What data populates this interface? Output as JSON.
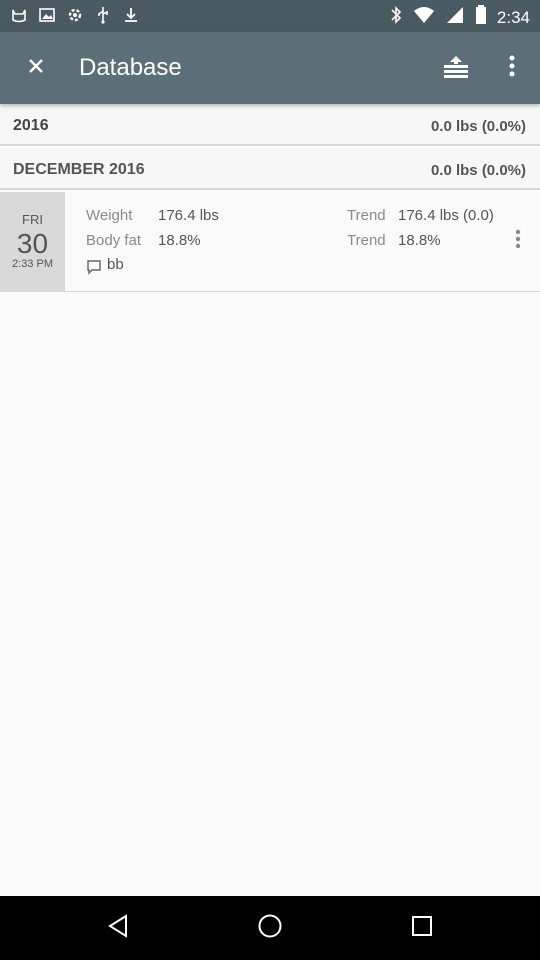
{
  "status_bar": {
    "time": "2:34",
    "left_icons": [
      "cat-icon",
      "image-icon",
      "settings-icon",
      "usb-icon",
      "download-icon"
    ],
    "right_icons": [
      "bluetooth-icon",
      "wifi-icon",
      "signal-icon",
      "battery-icon"
    ]
  },
  "app_bar": {
    "title": "Database",
    "close_icon": "close-icon",
    "share_icon": "export-icon",
    "more_icon": "more-vert-icon"
  },
  "year_section": {
    "label": "2016",
    "total": "0.0 lbs (0.0%)"
  },
  "month_section": {
    "label": "DECEMBER 2016",
    "total": "0.0 lbs (0.0%)"
  },
  "entries": [
    {
      "day_of_week": "FRI",
      "day": "30",
      "time": "2:33 PM",
      "weight_label": "Weight",
      "weight_value": "176.4 lbs",
      "bodyfat_label": "Body fat",
      "bodyfat_value": "18.8%",
      "trend_label": "Trend",
      "trend_weight": "176.4 lbs (0.0)",
      "trend_bodyfat": "18.8%",
      "comment": "bb"
    }
  ],
  "colors": {
    "status_bar": "#4a5a63",
    "app_bar": "#5c6f79",
    "background": "#fafafa",
    "date_block": "#d9d9d9"
  },
  "nav_bar": {
    "icons": [
      "back-icon",
      "home-icon",
      "recents-icon"
    ]
  }
}
